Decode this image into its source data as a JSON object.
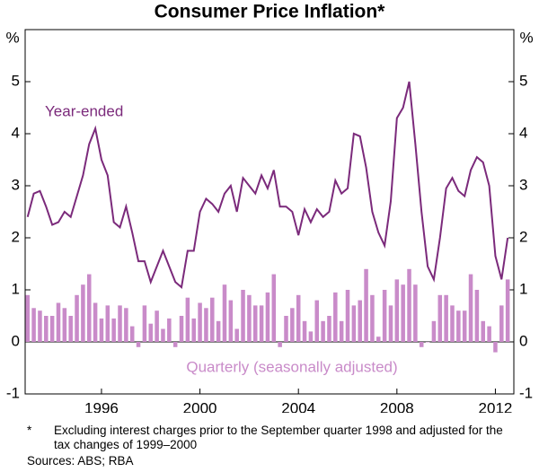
{
  "chart_data": {
    "type": "bar-line",
    "title": "Consumer Price Inflation*",
    "y_unit": "%",
    "y2_unit": "%",
    "x": [
      1993,
      1993.25,
      1993.5,
      1993.75,
      1994,
      1994.25,
      1994.5,
      1994.75,
      1995,
      1995.25,
      1995.5,
      1995.75,
      1996,
      1996.25,
      1996.5,
      1996.75,
      1997,
      1997.25,
      1997.5,
      1997.75,
      1998,
      1998.25,
      1998.5,
      1998.75,
      1999,
      1999.25,
      1999.5,
      1999.75,
      2000,
      2000.25,
      2000.5,
      2000.75,
      2001,
      2001.25,
      2001.5,
      2001.75,
      2002,
      2002.25,
      2002.5,
      2002.75,
      2003,
      2003.25,
      2003.5,
      2003.75,
      2004,
      2004.25,
      2004.5,
      2004.75,
      2005,
      2005.25,
      2005.5,
      2005.75,
      2006,
      2006.25,
      2006.5,
      2006.75,
      2007,
      2007.25,
      2007.5,
      2007.75,
      2008,
      2008.25,
      2008.5,
      2008.75,
      2009,
      2009.25,
      2009.5,
      2009.75,
      2010,
      2010.25,
      2010.5,
      2010.75,
      2011,
      2011.25,
      2011.5,
      2011.75,
      2012,
      2012.25,
      2012.5
    ],
    "series": [
      {
        "name": "Year-ended",
        "kind": "line",
        "color": "#7b2a7b",
        "values": [
          2.4,
          2.85,
          2.9,
          2.6,
          2.25,
          2.3,
          2.5,
          2.4,
          2.8,
          3.2,
          3.8,
          4.1,
          3.5,
          3.2,
          2.3,
          2.2,
          2.6,
          2.1,
          1.55,
          1.55,
          1.15,
          1.45,
          1.75,
          1.45,
          1.15,
          1.05,
          1.75,
          1.75,
          2.5,
          2.75,
          2.65,
          2.5,
          2.85,
          3.0,
          2.5,
          3.15,
          3.0,
          2.85,
          3.2,
          2.95,
          3.3,
          2.6,
          2.6,
          2.5,
          2.05,
          2.55,
          2.3,
          2.55,
          2.4,
          2.5,
          3.1,
          2.85,
          2.95,
          4.0,
          3.95,
          3.35,
          2.5,
          2.1,
          1.85,
          2.7,
          4.3,
          4.5,
          5.0,
          3.8,
          2.5,
          1.45,
          1.2,
          2.0,
          2.95,
          3.15,
          2.9,
          2.8,
          3.3,
          3.55,
          3.45,
          3.0,
          1.65,
          1.2,
          2.0
        ]
      },
      {
        "name": "Quarterly (seasonally adjusted)",
        "kind": "bar",
        "color": "#c98bc9",
        "values": [
          0.9,
          0.65,
          0.6,
          0.5,
          0.5,
          0.75,
          0.65,
          0.5,
          0.9,
          1.1,
          1.3,
          0.75,
          0.45,
          0.7,
          0.45,
          0.7,
          0.65,
          0.3,
          -0.1,
          0.7,
          0.35,
          0.6,
          0.25,
          0.45,
          -0.1,
          0.5,
          0.85,
          0.45,
          0.75,
          0.65,
          0.85,
          0.4,
          1.1,
          0.8,
          0.25,
          1.0,
          0.9,
          0.7,
          0.7,
          0.95,
          1.3,
          -0.1,
          0.5,
          0.65,
          0.9,
          0.4,
          0.2,
          0.8,
          0.4,
          0.5,
          0.95,
          0.4,
          1.0,
          0.7,
          0.8,
          1.4,
          0.9,
          0.1,
          1.0,
          0.7,
          1.2,
          1.1,
          1.4,
          1.1,
          -0.1,
          0.0,
          0.4,
          0.9,
          0.9,
          0.7,
          0.6,
          0.6,
          1.3,
          1.0,
          0.4,
          0.3,
          -0.2,
          0.7,
          1.2
        ]
      }
    ],
    "xlim": [
      1992.9,
      2012.75
    ],
    "xticks": [
      1996,
      2000,
      2004,
      2008,
      2012
    ],
    "ylim": [
      -1,
      6
    ],
    "yticks": [
      -1,
      0,
      1,
      2,
      3,
      4,
      5
    ],
    "y2lim": [
      -1,
      6
    ],
    "y2ticks": [
      -1,
      0,
      1,
      2,
      3,
      4,
      5
    ],
    "footnote_marker": "*",
    "footnote": "Excluding interest charges prior to the September quarter 1998 and adjusted for the tax changes of 1999–2000",
    "sources": "Sources: ABS; RBA"
  }
}
